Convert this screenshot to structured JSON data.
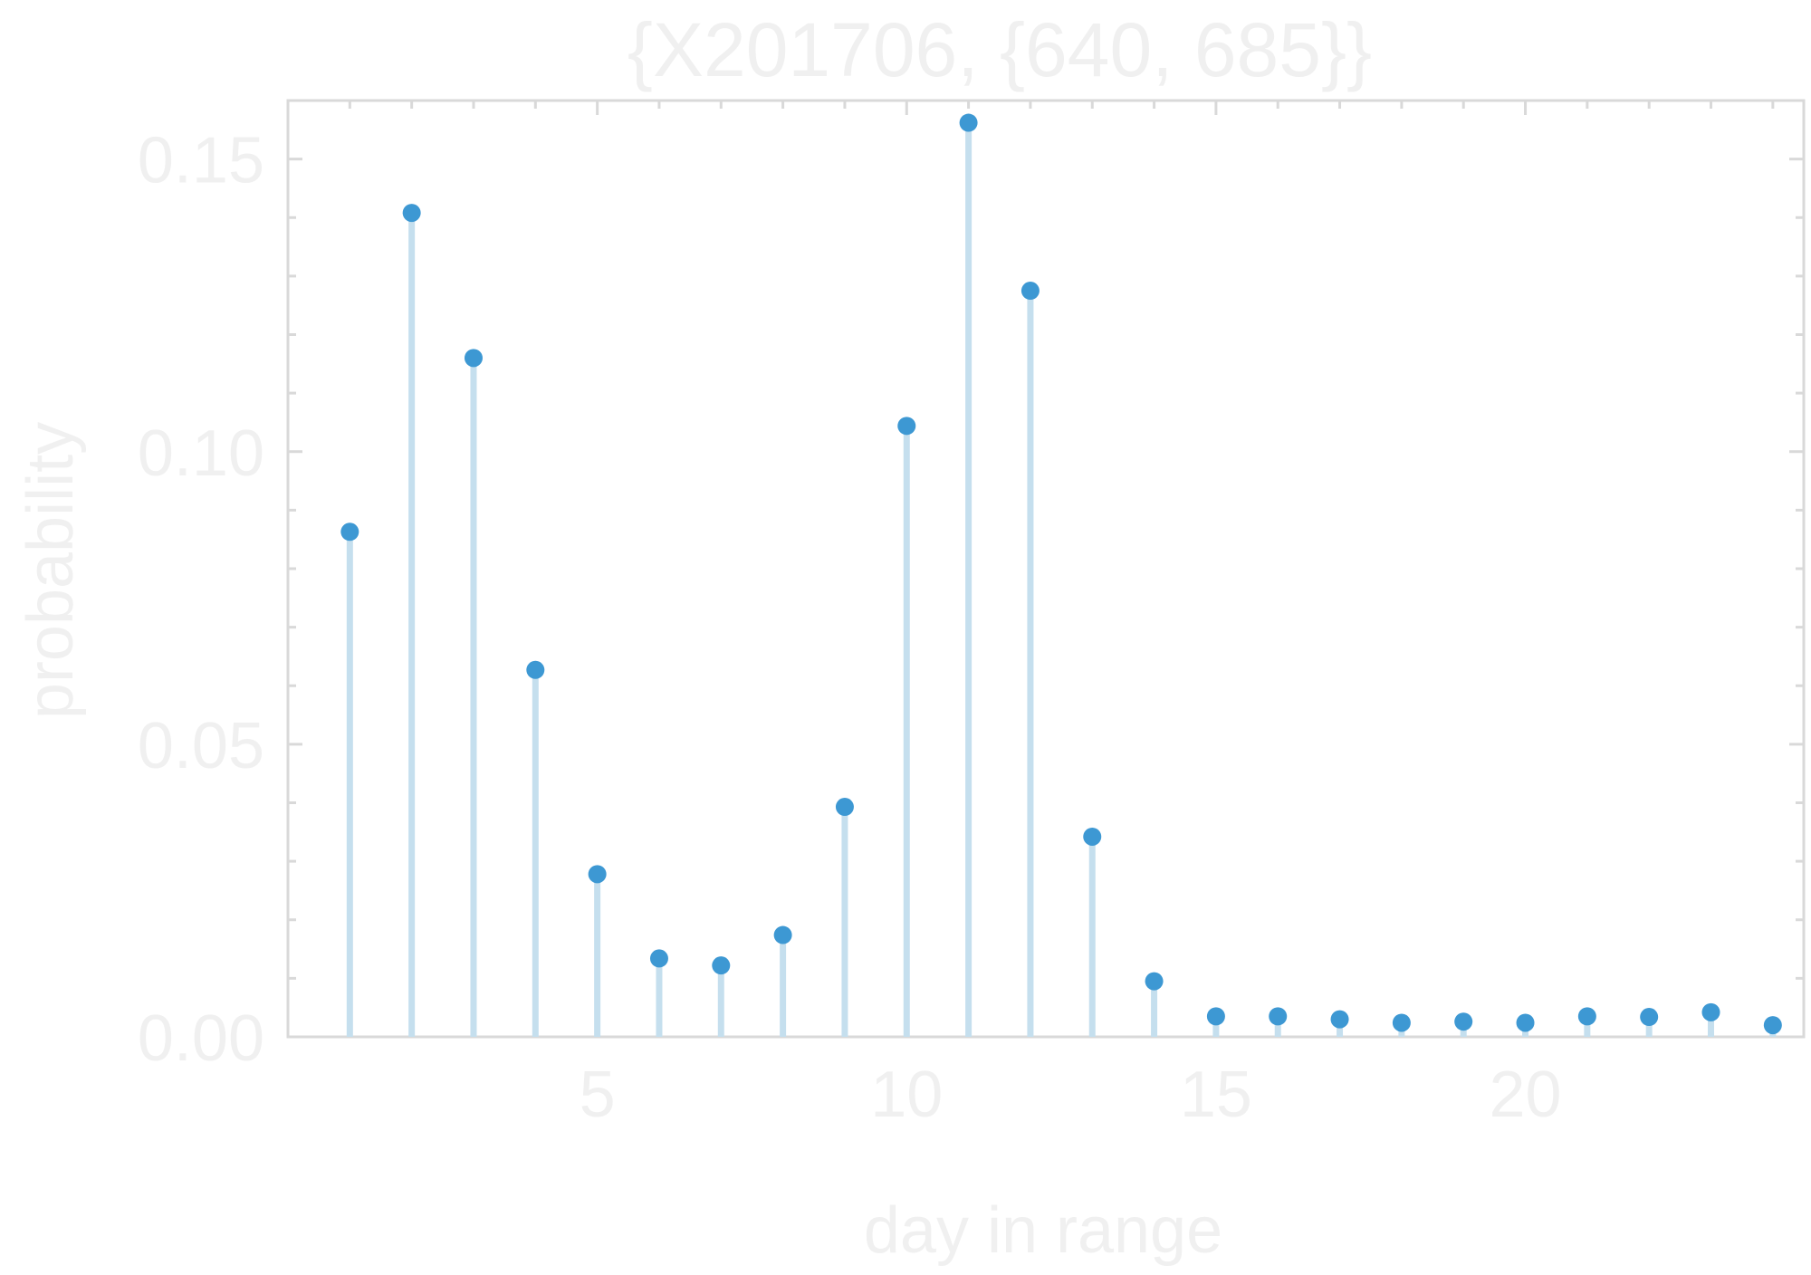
{
  "chart_data": {
    "type": "stem",
    "title": "{X201706, {640, 685}}",
    "xlabel": "day in range",
    "ylabel": "probability",
    "xlim": [
      0,
      24.5
    ],
    "ylim": [
      0,
      0.16
    ],
    "x_ticks": [
      5,
      10,
      15,
      20
    ],
    "y_ticks": [
      "0.00",
      "0.05",
      "0.10",
      "0.15"
    ],
    "x": [
      1,
      2,
      3,
      4,
      5,
      6,
      7,
      8,
      9,
      10,
      11,
      12,
      13,
      14,
      15,
      16,
      17,
      18,
      19,
      20,
      21,
      22,
      23,
      24
    ],
    "values": [
      0.0863,
      0.1408,
      0.116,
      0.0627,
      0.0278,
      0.0134,
      0.0122,
      0.0174,
      0.0393,
      0.1044,
      0.1562,
      0.1275,
      0.0342,
      0.0095,
      0.0035,
      0.0035,
      0.003,
      0.0024,
      0.0026,
      0.0024,
      0.0035,
      0.0034,
      0.0042,
      0.002
    ],
    "grid": false,
    "legend": "none"
  },
  "colors": {
    "point": "#3d98d3",
    "stem": "#c5dfee",
    "frame": "#d9d9d9",
    "text": "#f0f0f0",
    "background": "#ffffff"
  }
}
